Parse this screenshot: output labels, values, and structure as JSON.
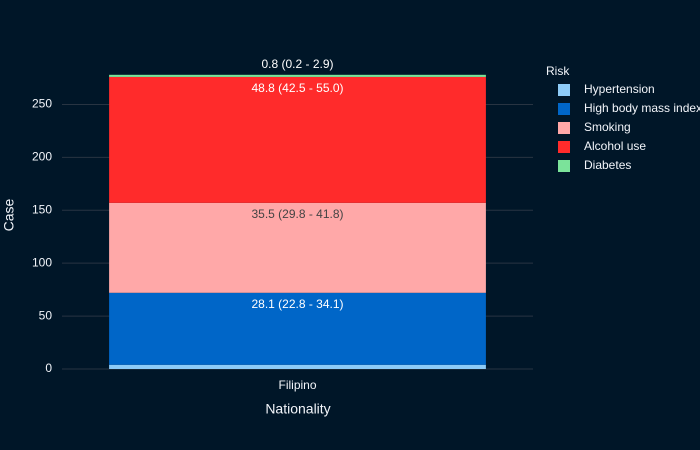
{
  "chart_data": {
    "type": "stacked_bar",
    "x_label": "Nationality",
    "y_label": "Case",
    "legend_title": "Risk",
    "categories": [
      "Filipino"
    ],
    "series": [
      {
        "name": "Hypertension",
        "color": "#8ecbf7",
        "values": [
          4
        ],
        "value_labels": [
          null
        ]
      },
      {
        "name": "High body mass index",
        "color": "#0066c8",
        "values": [
          68
        ],
        "value_labels": [
          "28.1 (22.8 - 34.1)"
        ]
      },
      {
        "name": "Smoking",
        "color": "#ffa8a8",
        "values": [
          85
        ],
        "value_labels": [
          "35.5 (29.8 - 41.8)"
        ]
      },
      {
        "name": "Alcohol use",
        "color": "#ff2b2b",
        "values": [
          119
        ],
        "value_labels": [
          "48.8 (42.5 - 55.0)"
        ]
      },
      {
        "name": "Diabetes",
        "color": "#7be39a",
        "values": [
          2
        ],
        "value_labels": [
          "0.8 (0.2 - 2.9)"
        ]
      }
    ],
    "ylim": [
      0,
      292
    ],
    "yticks": [
      0,
      50,
      100,
      150,
      200,
      250
    ],
    "grid": true,
    "legend": "right"
  }
}
